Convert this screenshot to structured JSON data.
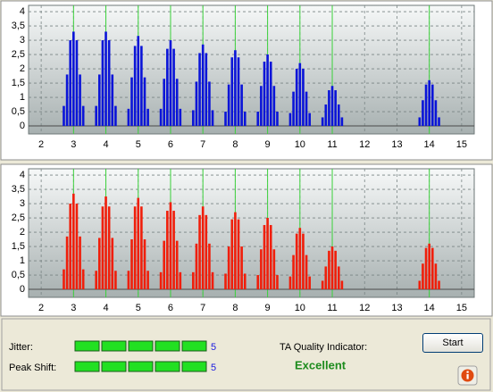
{
  "chart_data": [
    {
      "type": "bar",
      "color": "#0a14d8",
      "reference_color": "#3cd23c",
      "grid": true,
      "xlim": [
        1.61,
        15.39
      ],
      "ylim": [
        -0.28,
        4.22
      ],
      "xticks": [
        2,
        3,
        4,
        5,
        6,
        7,
        8,
        9,
        10,
        11,
        12,
        13,
        14,
        15
      ],
      "yticks": [
        0,
        {
          "value": 0.5,
          "label": "0,5"
        },
        1,
        {
          "value": 1.5,
          "label": "1,5"
        },
        2,
        {
          "value": 2.5,
          "label": "2,5"
        },
        3,
        {
          "value": 3.5,
          "label": "3,5"
        },
        4
      ],
      "reference_lines": [
        3,
        4,
        5,
        6,
        7,
        8,
        9,
        10,
        11,
        14
      ],
      "x": [
        2.7,
        2.8,
        2.9,
        3,
        3.1,
        3.2,
        3.3,
        3.7,
        3.8,
        3.9,
        4,
        4.1,
        4.2,
        4.3,
        4.7,
        4.8,
        4.9,
        5,
        5.1,
        5.2,
        5.3,
        5.7,
        5.8,
        5.9,
        6,
        6.1,
        6.2,
        6.3,
        6.7,
        6.8,
        6.9,
        7,
        7.1,
        7.2,
        7.3,
        7.7,
        7.8,
        7.9,
        8,
        8.1,
        8.2,
        8.3,
        8.7,
        8.8,
        8.9,
        9,
        9.1,
        9.2,
        9.3,
        9.7,
        9.8,
        9.9,
        10,
        10.1,
        10.2,
        10.3,
        10.7,
        10.8,
        10.9,
        11,
        11.1,
        11.2,
        11.3,
        13.7,
        13.8,
        13.9,
        14,
        14.1,
        14.2,
        14.3
      ],
      "values": [
        0.7,
        1.8,
        3.0,
        3.3,
        3.0,
        1.8,
        0.7,
        0.7,
        1.8,
        3.0,
        3.3,
        3.0,
        1.8,
        0.7,
        0.6,
        1.7,
        2.8,
        3.15,
        2.8,
        1.7,
        0.6,
        0.6,
        1.65,
        2.7,
        3.0,
        2.7,
        1.65,
        0.6,
        0.55,
        1.55,
        2.55,
        2.85,
        2.55,
        1.55,
        0.55,
        0.5,
        1.45,
        2.4,
        2.65,
        2.4,
        1.45,
        0.5,
        0.5,
        1.4,
        2.25,
        2.5,
        2.25,
        1.4,
        0.5,
        0.45,
        1.2,
        2.0,
        2.2,
        2.0,
        1.2,
        0.45,
        0.3,
        0.75,
        1.25,
        1.4,
        1.25,
        0.75,
        0.3,
        0.3,
        0.9,
        1.45,
        1.6,
        1.45,
        0.9,
        0.3
      ]
    },
    {
      "type": "bar",
      "color": "#f01e0a",
      "reference_color": "#3cd23c",
      "grid": true,
      "xlim": [
        1.61,
        15.39
      ],
      "ylim": [
        -0.28,
        4.22
      ],
      "xticks": [
        2,
        3,
        4,
        5,
        6,
        7,
        8,
        9,
        10,
        11,
        12,
        13,
        14,
        15
      ],
      "yticks": [
        0,
        {
          "value": 0.5,
          "label": "0,5"
        },
        1,
        {
          "value": 1.5,
          "label": "1,5"
        },
        2,
        {
          "value": 2.5,
          "label": "2,5"
        },
        3,
        {
          "value": 3.5,
          "label": "3,5"
        },
        4
      ],
      "reference_lines": [
        3,
        4,
        5,
        6,
        7,
        8,
        9,
        10,
        11,
        14
      ],
      "x": [
        2.7,
        2.8,
        2.9,
        3,
        3.1,
        3.2,
        3.3,
        3.7,
        3.8,
        3.9,
        4,
        4.1,
        4.2,
        4.3,
        4.7,
        4.8,
        4.9,
        5,
        5.1,
        5.2,
        5.3,
        5.7,
        5.8,
        5.9,
        6,
        6.1,
        6.2,
        6.3,
        6.7,
        6.8,
        6.9,
        7,
        7.1,
        7.2,
        7.3,
        7.7,
        7.8,
        7.9,
        8,
        8.1,
        8.2,
        8.3,
        8.7,
        8.8,
        8.9,
        9,
        9.1,
        9.2,
        9.3,
        9.7,
        9.8,
        9.9,
        10,
        10.1,
        10.2,
        10.3,
        10.7,
        10.8,
        10.9,
        11,
        11.1,
        11.2,
        11.3,
        13.7,
        13.8,
        13.9,
        14,
        14.1,
        14.2,
        14.3
      ],
      "values": [
        0.7,
        1.85,
        3.0,
        3.35,
        3.0,
        1.85,
        0.7,
        0.65,
        1.8,
        2.9,
        3.25,
        2.9,
        1.8,
        0.65,
        0.65,
        1.75,
        2.9,
        3.2,
        2.9,
        1.75,
        0.65,
        0.6,
        1.7,
        2.75,
        3.05,
        2.75,
        1.7,
        0.6,
        0.6,
        1.6,
        2.6,
        2.9,
        2.6,
        1.6,
        0.6,
        0.55,
        1.5,
        2.45,
        2.7,
        2.45,
        1.5,
        0.55,
        0.5,
        1.4,
        2.25,
        2.5,
        2.25,
        1.4,
        0.5,
        0.45,
        1.2,
        1.95,
        2.15,
        1.95,
        1.2,
        0.45,
        0.3,
        0.8,
        1.35,
        1.5,
        1.35,
        0.8,
        0.3,
        0.3,
        0.9,
        1.45,
        1.6,
        1.45,
        0.9,
        0.3
      ]
    }
  ],
  "panel": {
    "jitter": {
      "label": "Jitter:",
      "value": 5
    },
    "peak_shift": {
      "label": "Peak Shift:",
      "value": 5
    },
    "quality": {
      "label": "TA Quality Indicator:",
      "value": "Excellent"
    },
    "start_button": "Start"
  }
}
